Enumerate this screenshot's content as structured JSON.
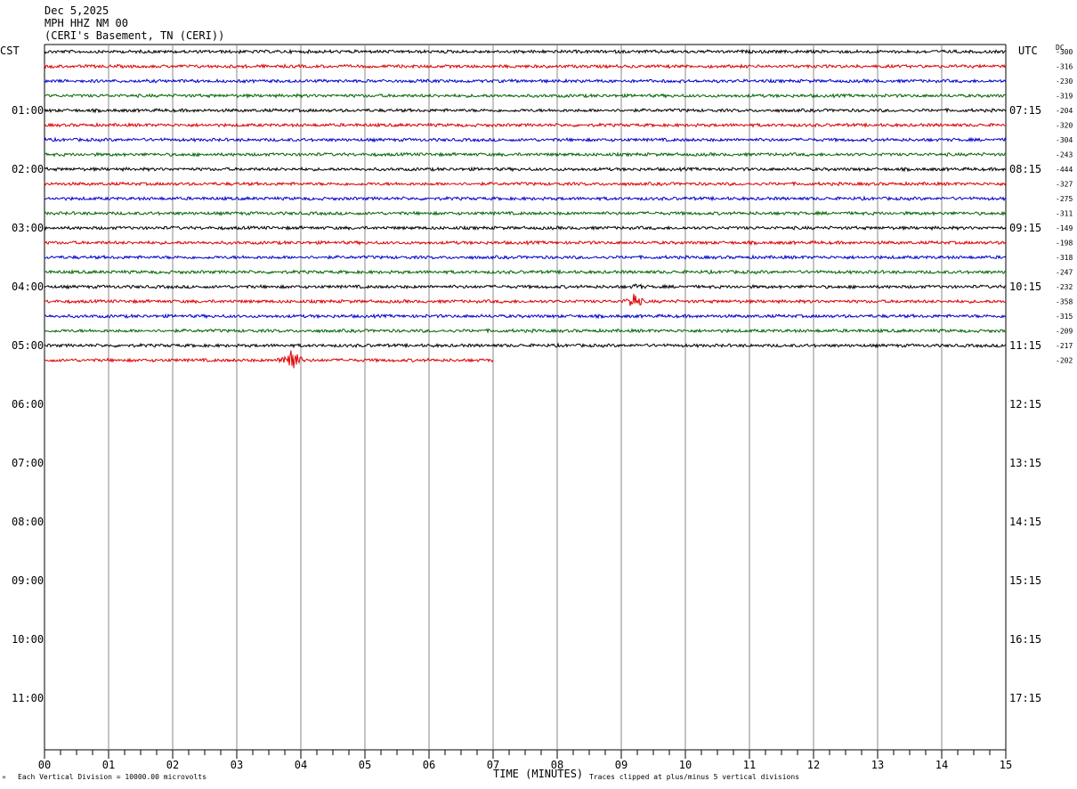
{
  "header": {
    "date": "Dec 5,2025",
    "station": "MPH HHZ NM 00",
    "location": "(CERI's Basement, TN (CERI))"
  },
  "left_axis_label": "CST",
  "right_axis_label": "UTC",
  "dc_header": "DC",
  "footer": {
    "scale_note": "Each Vertical Division = 10000.00 microvolts",
    "time_label": "TIME (MINUTES)",
    "clip_note": "Traces clipped at plus/minus 5 vertical divisions"
  },
  "chart_data": {
    "type": "line",
    "title": "",
    "xlabel": "TIME (MINUTES)",
    "ylabel": "",
    "x_range": [
      0,
      15
    ],
    "x_ticks": [
      "00",
      "01",
      "02",
      "03",
      "04",
      "05",
      "06",
      "07",
      "08",
      "09",
      "10",
      "11",
      "12",
      "13",
      "14",
      "15"
    ],
    "rows_total": 48,
    "minutes_per_row": 15,
    "trace_colors": [
      "#000000",
      "#dd0000",
      "#0000cc",
      "#006600"
    ],
    "hour_labels_cst": [
      "01:00",
      "02:00",
      "03:00",
      "04:00",
      "05:00",
      "06:00",
      "07:00",
      "08:00",
      "09:00",
      "10:00",
      "11:00"
    ],
    "hour_labels_utc": [
      "07:15",
      "08:15",
      "09:15",
      "10:15",
      "11:15",
      "12:15",
      "13:15",
      "14:15",
      "15:15",
      "16:15",
      "17:15"
    ],
    "dc_offsets": [
      "-300",
      "-316",
      "-230",
      "-319",
      "-204",
      "-320",
      "-304",
      "-243",
      "-444",
      "-327",
      "-275",
      "-311",
      "-149",
      "-198",
      "-318",
      "-247",
      "-232",
      "-358",
      "-315",
      "-209",
      "-217",
      "-202"
    ],
    "traces_plotted": 22,
    "last_trace_end_minute": 7.0,
    "events": [
      {
        "trace": 16,
        "minute": 9.25,
        "amplitude": "small"
      },
      {
        "trace": 17,
        "minute": 9.2,
        "amplitude": "medium"
      },
      {
        "trace": 21,
        "minute": 3.85,
        "amplitude": "large"
      }
    ],
    "grid": "vertical-minute-lines"
  }
}
